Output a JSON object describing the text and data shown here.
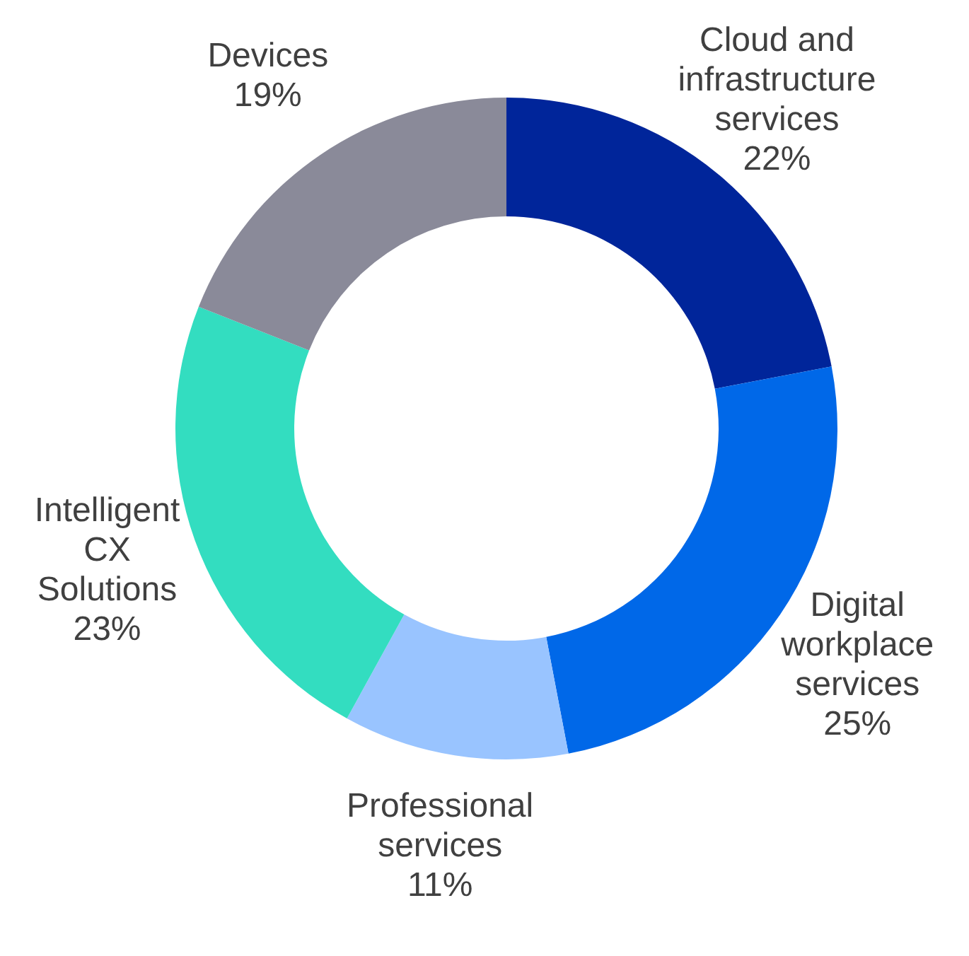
{
  "chart_data": {
    "type": "donut",
    "categories": [
      "Cloud and\ninfrastructure\nservices",
      "Digital\nworkplace\nservices",
      "Professional\nservices",
      "Intelligent\nCX\nSolutions",
      "Devices"
    ],
    "values": [
      22,
      25,
      11,
      23,
      19
    ],
    "colors": [
      "#00259a",
      "#0068e8",
      "#99c4ff",
      "#33ddc0",
      "#8a8a99"
    ],
    "value_labels": [
      "22%",
      "25%",
      "11%",
      "23%",
      "19%"
    ]
  }
}
